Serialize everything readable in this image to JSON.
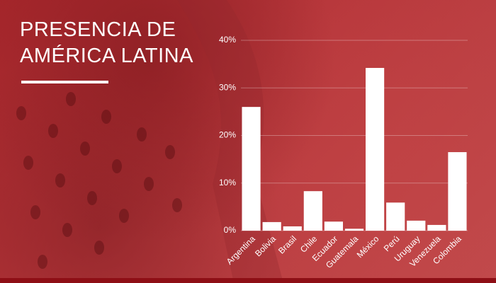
{
  "chart_data": {
    "type": "bar",
    "title": "PRESENCIA DE AMÉRICA LATINA",
    "categories": [
      "Argentina",
      "Bolivia",
      "Brasil",
      "Chile",
      "Ecuador",
      "Guatemala",
      "México",
      "Perú",
      "Uruguay",
      "Venezuela",
      "Colombia"
    ],
    "values": [
      26,
      1.8,
      0.9,
      8.3,
      1.9,
      0.4,
      34.2,
      5.9,
      2.1,
      1.2,
      16.5
    ],
    "color": "#ffffff",
    "ylim": [
      0,
      40
    ],
    "yticks": [
      {
        "value": 0,
        "label": "0%"
      },
      {
        "value": 10,
        "label": "10%"
      },
      {
        "value": 20,
        "label": "20%"
      },
      {
        "value": 30,
        "label": "30%"
      },
      {
        "value": 40,
        "label": "40%"
      }
    ],
    "grid": true
  }
}
